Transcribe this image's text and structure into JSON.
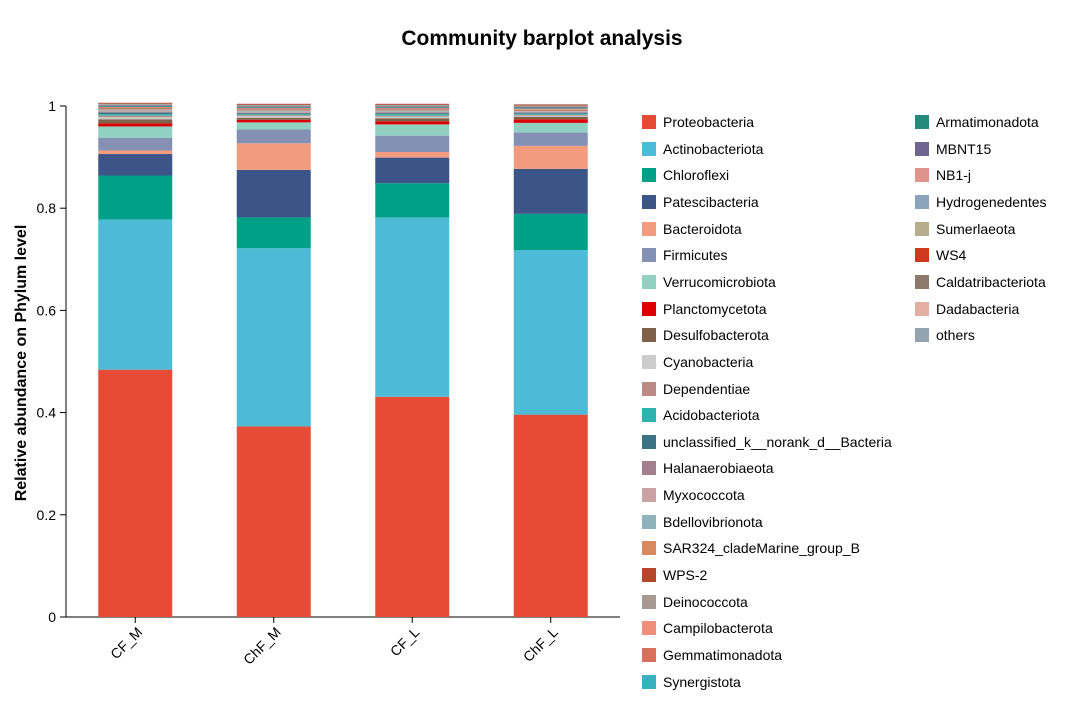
{
  "chart_data": {
    "type": "bar",
    "stacked": true,
    "title": "Community barplot analysis",
    "xlabel": "",
    "ylabel": "Relative abundance on Phylum level",
    "ylim": [
      0,
      1
    ],
    "yticks": [
      "0",
      "0.2",
      "0.4",
      "0.6",
      "0.8",
      "1"
    ],
    "grid": false,
    "legend_position": "right",
    "categories": [
      "CF_M",
      "ChF_M",
      "CF_L",
      "ChF_L"
    ],
    "series": [
      {
        "name": "Proteobacteria",
        "color": "#E64B35",
        "values": [
          0.484,
          0.373,
          0.431,
          0.396
        ]
      },
      {
        "name": "Actinobacteriota",
        "color": "#4DBBD5",
        "values": [
          0.294,
          0.349,
          0.351,
          0.322
        ]
      },
      {
        "name": "Chloroflexi",
        "color": "#00A087",
        "values": [
          0.086,
          0.06,
          0.067,
          0.071
        ]
      },
      {
        "name": "Patescibacteria",
        "color": "#3C5488",
        "values": [
          0.042,
          0.093,
          0.05,
          0.088
        ]
      },
      {
        "name": "Bacteroidota",
        "color": "#F39B7F",
        "values": [
          0.007,
          0.052,
          0.011,
          0.045
        ]
      },
      {
        "name": "Firmicutes",
        "color": "#8491B4",
        "values": [
          0.025,
          0.027,
          0.032,
          0.026
        ]
      },
      {
        "name": "Verrucomicrobiota",
        "color": "#91D1C2",
        "values": [
          0.022,
          0.014,
          0.022,
          0.019
        ]
      },
      {
        "name": "Planctomycetota",
        "color": "#DC0000",
        "values": [
          0.006,
          0.005,
          0.006,
          0.007
        ]
      },
      {
        "name": "Desulfobacterota",
        "color": "#7E6148",
        "values": [
          0.008,
          0.004,
          0.006,
          0.005
        ]
      },
      {
        "name": "Cyanobacteria",
        "color": "#CCCCCC",
        "values": [
          0.004,
          0.003,
          0.003,
          0.002
        ]
      },
      {
        "name": "Dependentiae",
        "color": "#BC8A84",
        "values": [
          0.003,
          0.002,
          0.002,
          0.002
        ]
      },
      {
        "name": "Acidobacteriota",
        "color": "#2FB2AE",
        "values": [
          0.003,
          0.002,
          0.003,
          0.002
        ]
      },
      {
        "name": "unclassified_k__norank_d__Bacteria",
        "color": "#3A7484",
        "values": [
          0.003,
          0.002,
          0.002,
          0.002
        ]
      },
      {
        "name": "Halanaerobiaeota",
        "color": "#A4808F",
        "values": [
          0.002,
          0.001,
          0.002,
          0.001
        ]
      },
      {
        "name": "Myxococcota",
        "color": "#C9A3A3",
        "values": [
          0.002,
          0.002,
          0.001,
          0.001
        ]
      },
      {
        "name": "Bdellovibrionota",
        "color": "#8FB3BD",
        "values": [
          0.002,
          0.002,
          0.002,
          0.001
        ]
      },
      {
        "name": "SAR324_cladeMarine_group_B",
        "color": "#D9895F",
        "values": [
          0.001,
          0.001,
          0.001,
          0.001
        ]
      },
      {
        "name": "WPS-2",
        "color": "#B5472B",
        "values": [
          0.001,
          0.001,
          0.001,
          0.001
        ]
      },
      {
        "name": "Deinococcota",
        "color": "#A79A90",
        "values": [
          0.001,
          0.001,
          0.001,
          0.001
        ]
      },
      {
        "name": "Campilobacterota",
        "color": "#EF8E7A",
        "values": [
          0.001,
          0.001,
          0.001,
          0.001
        ]
      },
      {
        "name": "Gemmatimonadota",
        "color": "#DA6F5D",
        "values": [
          0.001,
          0.001,
          0.001,
          0.001
        ]
      },
      {
        "name": "Synergistota",
        "color": "#3BB0C0",
        "values": [
          0.001,
          0.001,
          0.001,
          0.001
        ]
      },
      {
        "name": "Armatimonadota",
        "color": "#238B7E",
        "values": [
          0.001,
          0.001,
          0.001,
          0.001
        ]
      },
      {
        "name": "MBNT15",
        "color": "#6E6591",
        "values": [
          0.001,
          0.001,
          0.001,
          0.001
        ]
      },
      {
        "name": "NB1-j",
        "color": "#E0938A",
        "values": [
          0.001,
          0.001,
          0.001,
          0.001
        ]
      },
      {
        "name": "Hydrogenedentes",
        "color": "#8CA3BE",
        "values": [
          0.001,
          0.001,
          0.001,
          0.001
        ]
      },
      {
        "name": "Sumerlaeota",
        "color": "#B7AC8C",
        "values": [
          0.001,
          0.001,
          0.001,
          0.001
        ]
      },
      {
        "name": "WS4",
        "color": "#CF3A1E",
        "values": [
          0.001,
          0.001,
          0.001,
          0.001
        ]
      },
      {
        "name": "Caldatribacteriota",
        "color": "#8E7A6A",
        "values": [
          0.001,
          0.001,
          0.001,
          0.001
        ]
      },
      {
        "name": "Dadabacteria",
        "color": "#E3AFA5",
        "values": [
          0.001,
          0.001,
          0.001,
          0.001
        ]
      },
      {
        "name": "others",
        "color": "#93A3AF",
        "values": [
          0.0,
          0.0,
          0.0,
          0.0
        ]
      }
    ]
  }
}
